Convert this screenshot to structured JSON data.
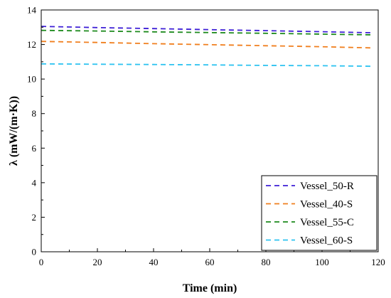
{
  "chart_data": {
    "type": "line",
    "xlabel": "Time (min)",
    "ylabel": "λ (mW/(m·K))",
    "xlim": [
      0,
      120
    ],
    "ylim": [
      0,
      14
    ],
    "xticks": [
      0,
      20,
      40,
      60,
      80,
      100,
      120
    ],
    "yticks": [
      0,
      2,
      4,
      6,
      8,
      10,
      12,
      14
    ],
    "grid": false,
    "legend_position": "bottom-right",
    "line_style": "dashed",
    "x": [
      0,
      20,
      40,
      60,
      80,
      100,
      118
    ],
    "series": [
      {
        "name": "Vessel_50-R",
        "color": "#3d1fd6",
        "values": [
          13.05,
          12.98,
          12.92,
          12.86,
          12.8,
          12.74,
          12.68
        ]
      },
      {
        "name": "Vessel_40-S",
        "color": "#f07f1e",
        "values": [
          12.18,
          12.12,
          12.05,
          11.99,
          11.93,
          11.87,
          11.8
        ]
      },
      {
        "name": "Vessel_55-C",
        "color": "#1d8a1d",
        "values": [
          12.82,
          12.78,
          12.73,
          12.69,
          12.65,
          12.6,
          12.56
        ]
      },
      {
        "name": "Vessel_60-S",
        "color": "#2ec3f0",
        "values": [
          10.88,
          10.86,
          10.84,
          10.82,
          10.79,
          10.77,
          10.74
        ]
      }
    ]
  }
}
